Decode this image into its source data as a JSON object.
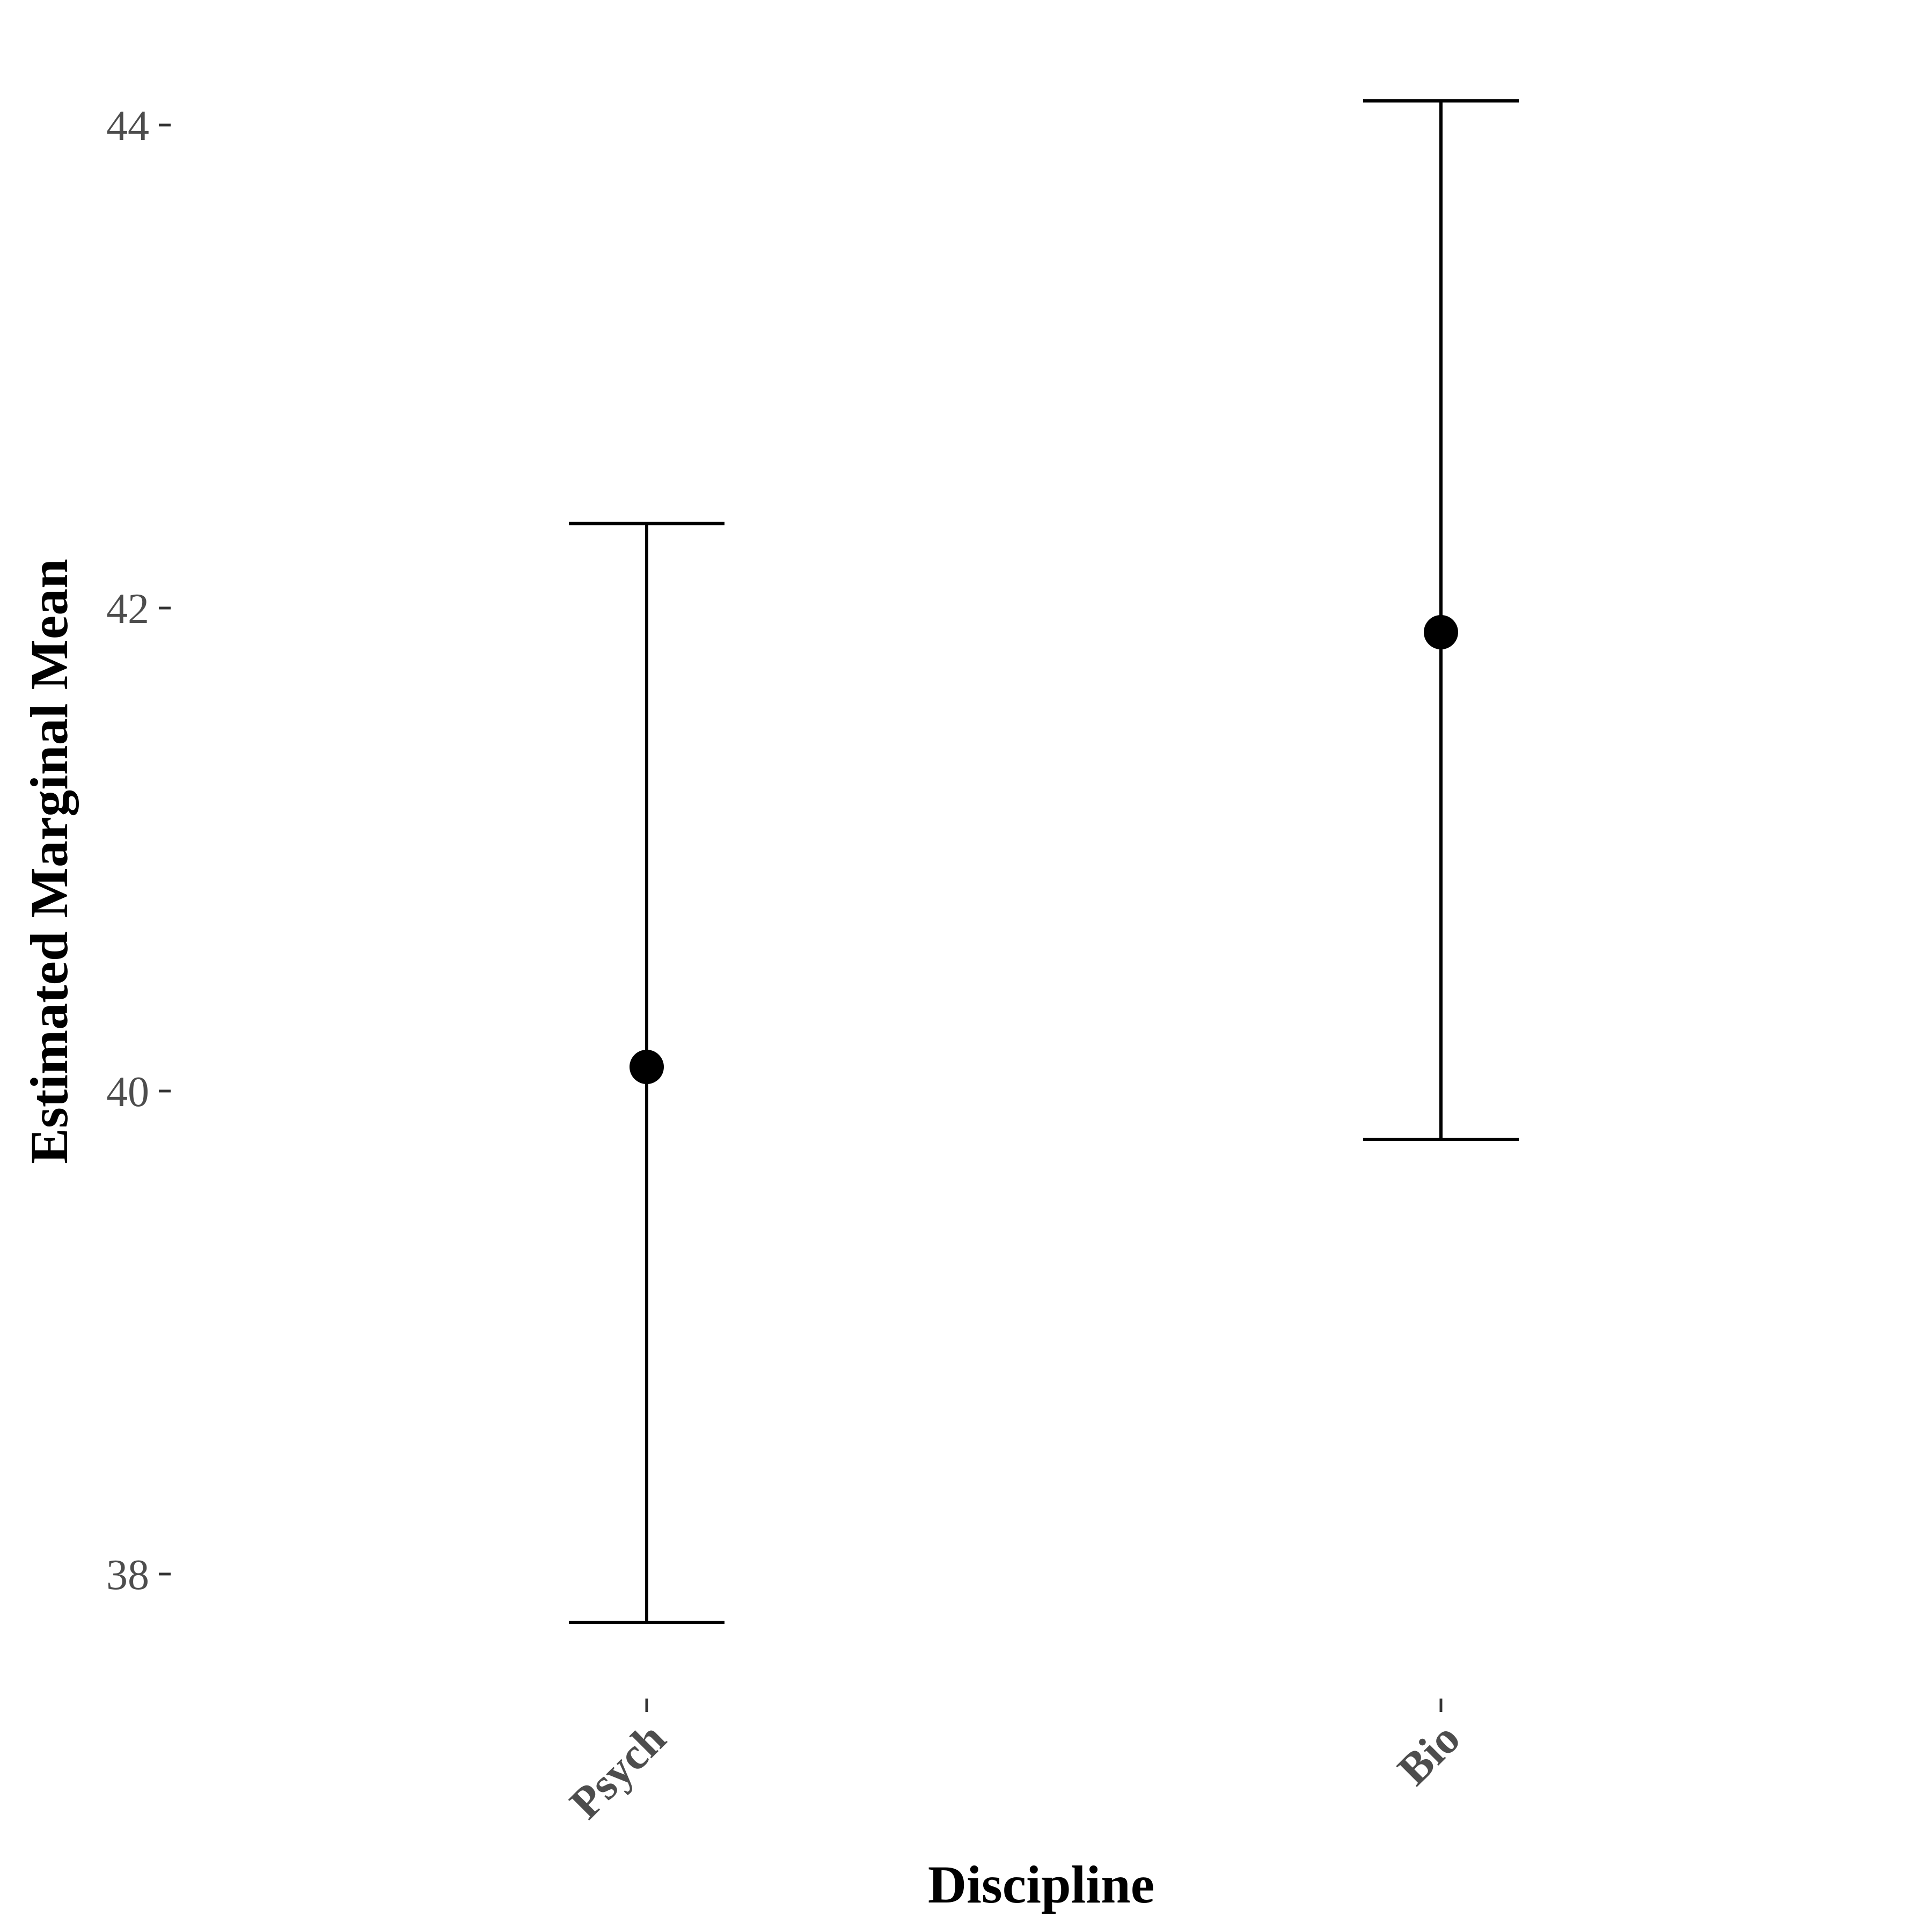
{
  "chart_data": {
    "type": "scatter",
    "subtype": "point-with-errorbars",
    "title": "",
    "xlabel": "Discipline",
    "ylabel": "Estimated Marginal Mean",
    "categories": [
      "Psych",
      "Bio"
    ],
    "points": [
      {
        "category": "Psych",
        "mean": 40.1,
        "lower": 37.8,
        "upper": 42.35
      },
      {
        "category": "Bio",
        "mean": 41.9,
        "lower": 39.8,
        "upper": 44.1
      }
    ],
    "ylim": [
      37.45,
      44.35
    ],
    "yticks": [
      38,
      40,
      42,
      44
    ],
    "ytick_labels": [
      "38",
      "40",
      "42",
      "44"
    ],
    "grid": false,
    "legend": "none",
    "colors": {
      "point": "#000000",
      "errorbar": "#000000",
      "tick_label": "#4d4d4d",
      "axis_title": "#000000"
    }
  }
}
